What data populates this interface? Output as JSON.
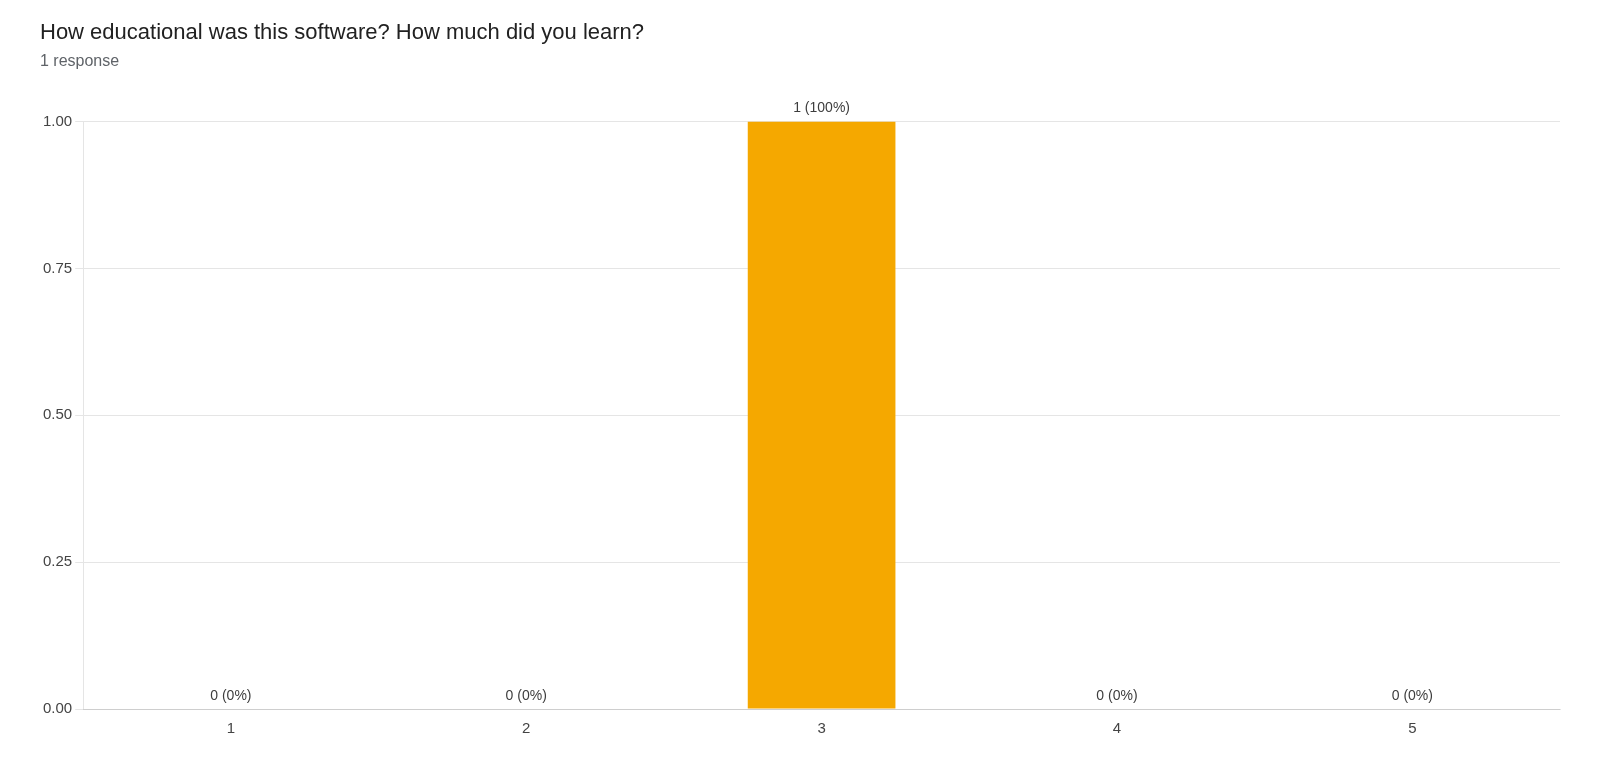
{
  "chart_data": {
    "type": "bar",
    "title": "How educational was this software? How much did you learn?",
    "subtitle": "1 response",
    "categories": [
      1,
      2,
      3,
      4,
      5
    ],
    "values": [
      0.0,
      0.0,
      1.0,
      0.0,
      0.0
    ],
    "value_labels": [
      "0 (0%)",
      "0 (0%)",
      "1 (100%)",
      "0 (0%)",
      "0 (0%)"
    ],
    "data_labels": true,
    "color": "#F5A800",
    "ylim": [
      0,
      1.0
    ],
    "yticks": [
      {
        "value": 0.0,
        "label": "0.00"
      },
      0.25,
      {
        "value": 0.5,
        "label": "0.50"
      },
      0.75,
      {
        "value": 1.0,
        "label": "1.00"
      }
    ],
    "grid": true
  }
}
